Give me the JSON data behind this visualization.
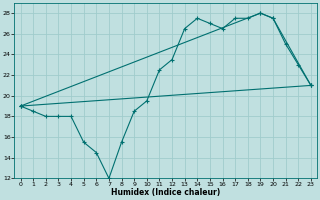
{
  "xlabel": "Humidex (Indice chaleur)",
  "bg_color": "#c0e0e0",
  "grid_color": "#a0cccc",
  "line_color": "#007070",
  "xlim": [
    -0.5,
    23.5
  ],
  "ylim": [
    12,
    29
  ],
  "xticks": [
    0,
    1,
    2,
    3,
    4,
    5,
    6,
    7,
    8,
    9,
    10,
    11,
    12,
    13,
    14,
    15,
    16,
    17,
    18,
    19,
    20,
    21,
    22,
    23
  ],
  "yticks": [
    12,
    14,
    16,
    18,
    20,
    22,
    24,
    26,
    28
  ],
  "series1_x": [
    0,
    1,
    2,
    3,
    4,
    5,
    6,
    7,
    8,
    9,
    10,
    11,
    12,
    13,
    14,
    15,
    16,
    17,
    18,
    19,
    20,
    21,
    22,
    23
  ],
  "series1_y": [
    19.0,
    18.5,
    18.0,
    18.0,
    18.0,
    15.5,
    14.5,
    12.0,
    15.5,
    18.5,
    19.5,
    22.5,
    23.5,
    26.5,
    27.5,
    27.0,
    26.5,
    27.5,
    27.5,
    28.0,
    27.5,
    25.0,
    23.0,
    21.0
  ],
  "series2_x": [
    0,
    23
  ],
  "series2_y": [
    19.0,
    21.0
  ],
  "series3_x": [
    0,
    19,
    20,
    23
  ],
  "series3_y": [
    19.0,
    28.0,
    27.5,
    21.0
  ]
}
